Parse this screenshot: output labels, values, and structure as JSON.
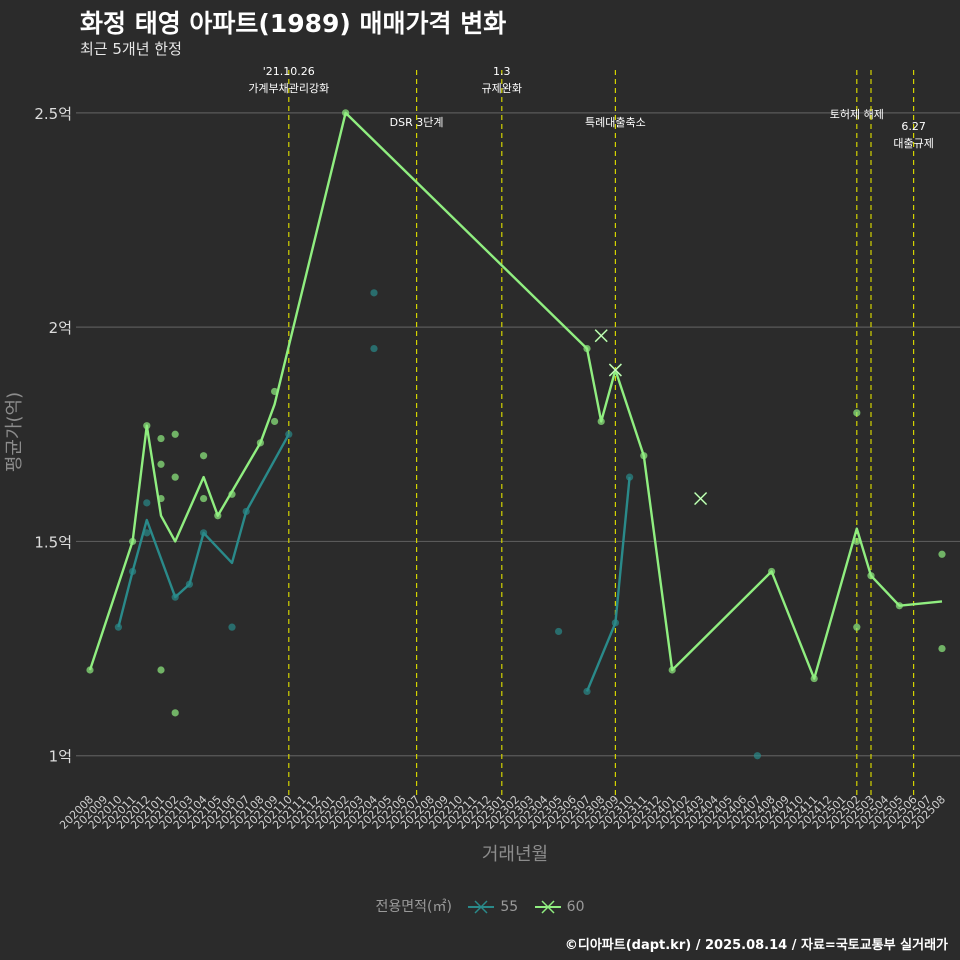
{
  "header": {
    "title": "화정 태영 아파트(1989) 매매가격 변화",
    "subtitle": "최근 5개년 한정"
  },
  "caption": "©디아파트(dapt.kr) / 2025.08.14 / 자료=국토교통부 실거래가",
  "chart_data": {
    "type": "line",
    "xlabel": "거래년월",
    "ylabel": "평균가(억)",
    "x_categories": [
      "202008",
      "202009",
      "202010",
      "202011",
      "202012",
      "202101",
      "202102",
      "202103",
      "202104",
      "202105",
      "202106",
      "202107",
      "202108",
      "202109",
      "202110",
      "202111",
      "202112",
      "202201",
      "202202",
      "202203",
      "202204",
      "202205",
      "202206",
      "202207",
      "202208",
      "202209",
      "202210",
      "202211",
      "202212",
      "202301",
      "202302",
      "202303",
      "202304",
      "202305",
      "202306",
      "202307",
      "202308",
      "202309",
      "202310",
      "202311",
      "202312",
      "202401",
      "202402",
      "202403",
      "202404",
      "202405",
      "202406",
      "202407",
      "202408",
      "202409",
      "202410",
      "202411",
      "202412",
      "202501",
      "202502",
      "202503",
      "202504",
      "202505",
      "202506",
      "202507",
      "202508"
    ],
    "y_ticks": [
      {
        "value": 1.0,
        "label": "1억"
      },
      {
        "value": 1.5,
        "label": "1.5억"
      },
      {
        "value": 2.0,
        "label": "2억"
      },
      {
        "value": 2.5,
        "label": "2.5억"
      }
    ],
    "ylim": [
      0.92,
      2.6
    ],
    "grid": true,
    "legend_title": "전용면적(㎡)",
    "legend_position": "bottom",
    "series": [
      {
        "name": "55",
        "color": "#2a8a8a",
        "line": [
          [
            "202010",
            1.3
          ],
          [
            "202011",
            1.43
          ],
          [
            "202012",
            1.55
          ],
          [
            "202102",
            1.37
          ],
          [
            "202103",
            1.4
          ],
          [
            "202104",
            1.52
          ],
          [
            "202106",
            1.45
          ],
          [
            "202107",
            1.57
          ],
          [
            "202110",
            1.75
          ]
        ],
        "line2": [
          [
            "202307",
            1.15
          ],
          [
            "202309",
            1.31
          ],
          [
            "202310",
            1.65
          ]
        ],
        "points": [
          [
            "202010",
            1.3
          ],
          [
            "202011",
            1.43
          ],
          [
            "202012",
            1.59
          ],
          [
            "202012",
            1.52
          ],
          [
            "202102",
            1.37
          ],
          [
            "202103",
            1.4
          ],
          [
            "202104",
            1.52
          ],
          [
            "202106",
            1.3
          ],
          [
            "202107",
            1.57
          ],
          [
            "202110",
            1.75
          ],
          [
            "202204",
            2.08
          ],
          [
            "202204",
            1.95
          ],
          [
            "202305",
            1.29
          ],
          [
            "202307",
            1.15
          ],
          [
            "202309",
            1.31
          ],
          [
            "202310",
            1.65
          ],
          [
            "202407",
            1.0
          ]
        ],
        "cross_points": []
      },
      {
        "name": "60",
        "color": "#90ee80",
        "line": [
          [
            "202008",
            1.2
          ],
          [
            "202011",
            1.5
          ],
          [
            "202012",
            1.77
          ],
          [
            "202101",
            1.56
          ],
          [
            "202102",
            1.5
          ],
          [
            "202104",
            1.65
          ],
          [
            "202105",
            1.56
          ],
          [
            "202108",
            1.73
          ],
          [
            "202109",
            1.82
          ],
          [
            "202202",
            2.5
          ],
          [
            "202307",
            1.95
          ],
          [
            "202308",
            1.78
          ],
          [
            "202309",
            1.9
          ],
          [
            "202311",
            1.7
          ],
          [
            "202401",
            1.2
          ],
          [
            "202408",
            1.43
          ],
          [
            "202411",
            1.18
          ],
          [
            "202502",
            1.53
          ],
          [
            "202503",
            1.42
          ],
          [
            "202505",
            1.35
          ],
          [
            "202508",
            1.36
          ]
        ],
        "points": [
          [
            "202008",
            1.2
          ],
          [
            "202011",
            1.5
          ],
          [
            "202012",
            1.77
          ],
          [
            "202101",
            1.74
          ],
          [
            "202101",
            1.68
          ],
          [
            "202101",
            1.6
          ],
          [
            "202101",
            1.2
          ],
          [
            "202102",
            1.75
          ],
          [
            "202102",
            1.65
          ],
          [
            "202102",
            1.1
          ],
          [
            "202104",
            1.7
          ],
          [
            "202104",
            1.6
          ],
          [
            "202105",
            1.56
          ],
          [
            "202106",
            1.61
          ],
          [
            "202108",
            1.73
          ],
          [
            "202109",
            1.85
          ],
          [
            "202109",
            1.78
          ],
          [
            "202202",
            2.5
          ],
          [
            "202307",
            1.95
          ],
          [
            "202308",
            1.78
          ],
          [
            "202311",
            1.7
          ],
          [
            "202401",
            1.2
          ],
          [
            "202408",
            1.43
          ],
          [
            "202411",
            1.18
          ],
          [
            "202502",
            1.8
          ],
          [
            "202502",
            1.5
          ],
          [
            "202502",
            1.3
          ],
          [
            "202503",
            1.42
          ],
          [
            "202505",
            1.35
          ],
          [
            "202508",
            1.47
          ],
          [
            "202508",
            1.25
          ]
        ],
        "cross_points": [
          [
            "202308",
            1.98
          ],
          [
            "202309",
            1.9
          ],
          [
            "202403",
            1.6
          ]
        ]
      }
    ],
    "events": [
      {
        "x": "202110",
        "lines": [
          "'21.10.26",
          "가계부채관리강화"
        ],
        "level": 0
      },
      {
        "x": "202207",
        "lines": [
          "DSR 3단계"
        ],
        "level": 2
      },
      {
        "x": "202301",
        "lines": [
          "1.3",
          "규제완화"
        ],
        "level": 0
      },
      {
        "x": "202309",
        "lines": [
          "특례대출축소"
        ],
        "level": 2
      },
      {
        "x": "202502",
        "lines": [
          "토허제 해제"
        ],
        "level": 1
      },
      {
        "x": "202503",
        "lines": [],
        "level": 1
      },
      {
        "x": "202506",
        "lines": [
          "6.27",
          "대출규제"
        ],
        "level": 3
      }
    ]
  }
}
